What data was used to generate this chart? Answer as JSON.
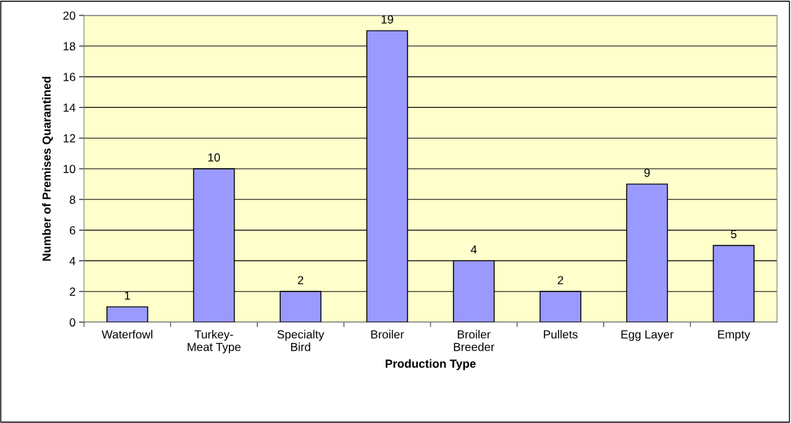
{
  "chart_data": {
    "type": "bar",
    "xlabel": "Production Type",
    "ylabel": "Number of Premises Quarantined",
    "categories": [
      "Waterfowl",
      "Turkey-\nMeat Type",
      "Specialty\nBird",
      "Broiler",
      "Broiler\nBreeder",
      "Pullets",
      "Egg Layer",
      "Empty"
    ],
    "values": [
      1,
      10,
      2,
      19,
      4,
      2,
      9,
      5
    ],
    "color": "#9999ff",
    "ylim": [
      0,
      20
    ],
    "yticks": [
      0,
      2,
      4,
      6,
      8,
      10,
      12,
      14,
      16,
      18,
      20
    ],
    "grid": "y",
    "data_labels": true
  }
}
